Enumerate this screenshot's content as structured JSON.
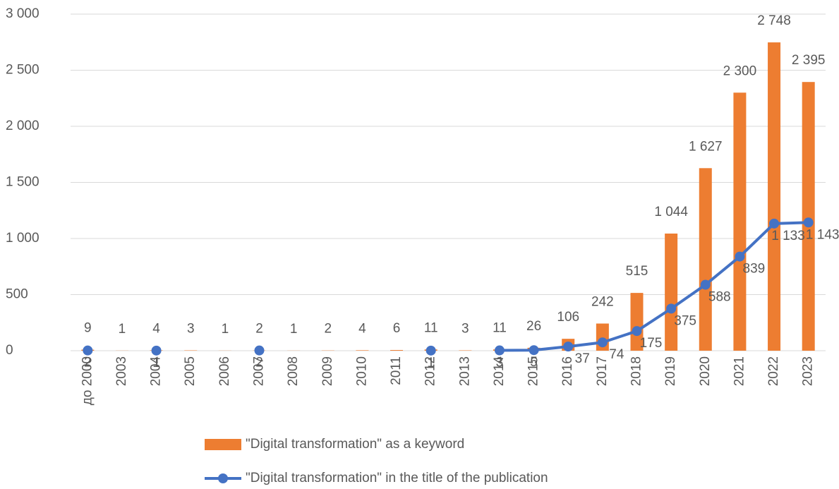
{
  "chart_data": {
    "type": "bar+line",
    "categories": [
      "до 2000",
      "2003",
      "2004",
      "2005",
      "2006",
      "2007",
      "2008",
      "2009",
      "2010",
      "2011",
      "2012",
      "2013",
      "2014",
      "2015",
      "2016",
      "2017",
      "2018",
      "2019",
      "2020",
      "2021",
      "2022",
      "2023"
    ],
    "series": [
      {
        "name": "\"Digital transformation\" as a keyword",
        "type": "bar",
        "color": "#ed7d31",
        "values": [
          9,
          1,
          4,
          3,
          1,
          2,
          1,
          2,
          4,
          6,
          11,
          3,
          11,
          26,
          106,
          242,
          515,
          1044,
          1627,
          2300,
          2748,
          2395
        ],
        "value_labels": [
          "9",
          "1",
          "4",
          "3",
          "1",
          "2",
          "1",
          "2",
          "4",
          "6",
          "11",
          "3",
          "11",
          "26",
          "106",
          "242",
          "515",
          "1 044",
          "1 627",
          "2 300",
          "2 748",
          "2 395"
        ]
      },
      {
        "name": "\"Digital transformation\" in the title of the publication",
        "type": "line",
        "color": "#4472c4",
        "values": [
          2,
          null,
          1,
          null,
          null,
          2,
          null,
          null,
          null,
          null,
          1,
          null,
          3,
          5,
          37,
          74,
          175,
          375,
          588,
          839,
          1133,
          1143
        ],
        "value_labels": [
          "2",
          null,
          "1",
          null,
          null,
          "2",
          null,
          null,
          null,
          null,
          "1",
          null,
          "3",
          "5",
          "37",
          "74",
          "175",
          "375",
          "588",
          "839",
          "1 133",
          "1 143"
        ]
      }
    ],
    "ylim": [
      0,
      3000
    ],
    "yticks": [
      0,
      500,
      {
        "value": 1000,
        "label": "1 000"
      },
      {
        "value": 1500,
        "label": "1 500"
      },
      {
        "value": 2000,
        "label": "2 000"
      },
      {
        "value": 2500,
        "label": "2 500"
      },
      {
        "value": 3000,
        "label": "3 000"
      }
    ],
    "grid": true,
    "legend": "bottom"
  }
}
